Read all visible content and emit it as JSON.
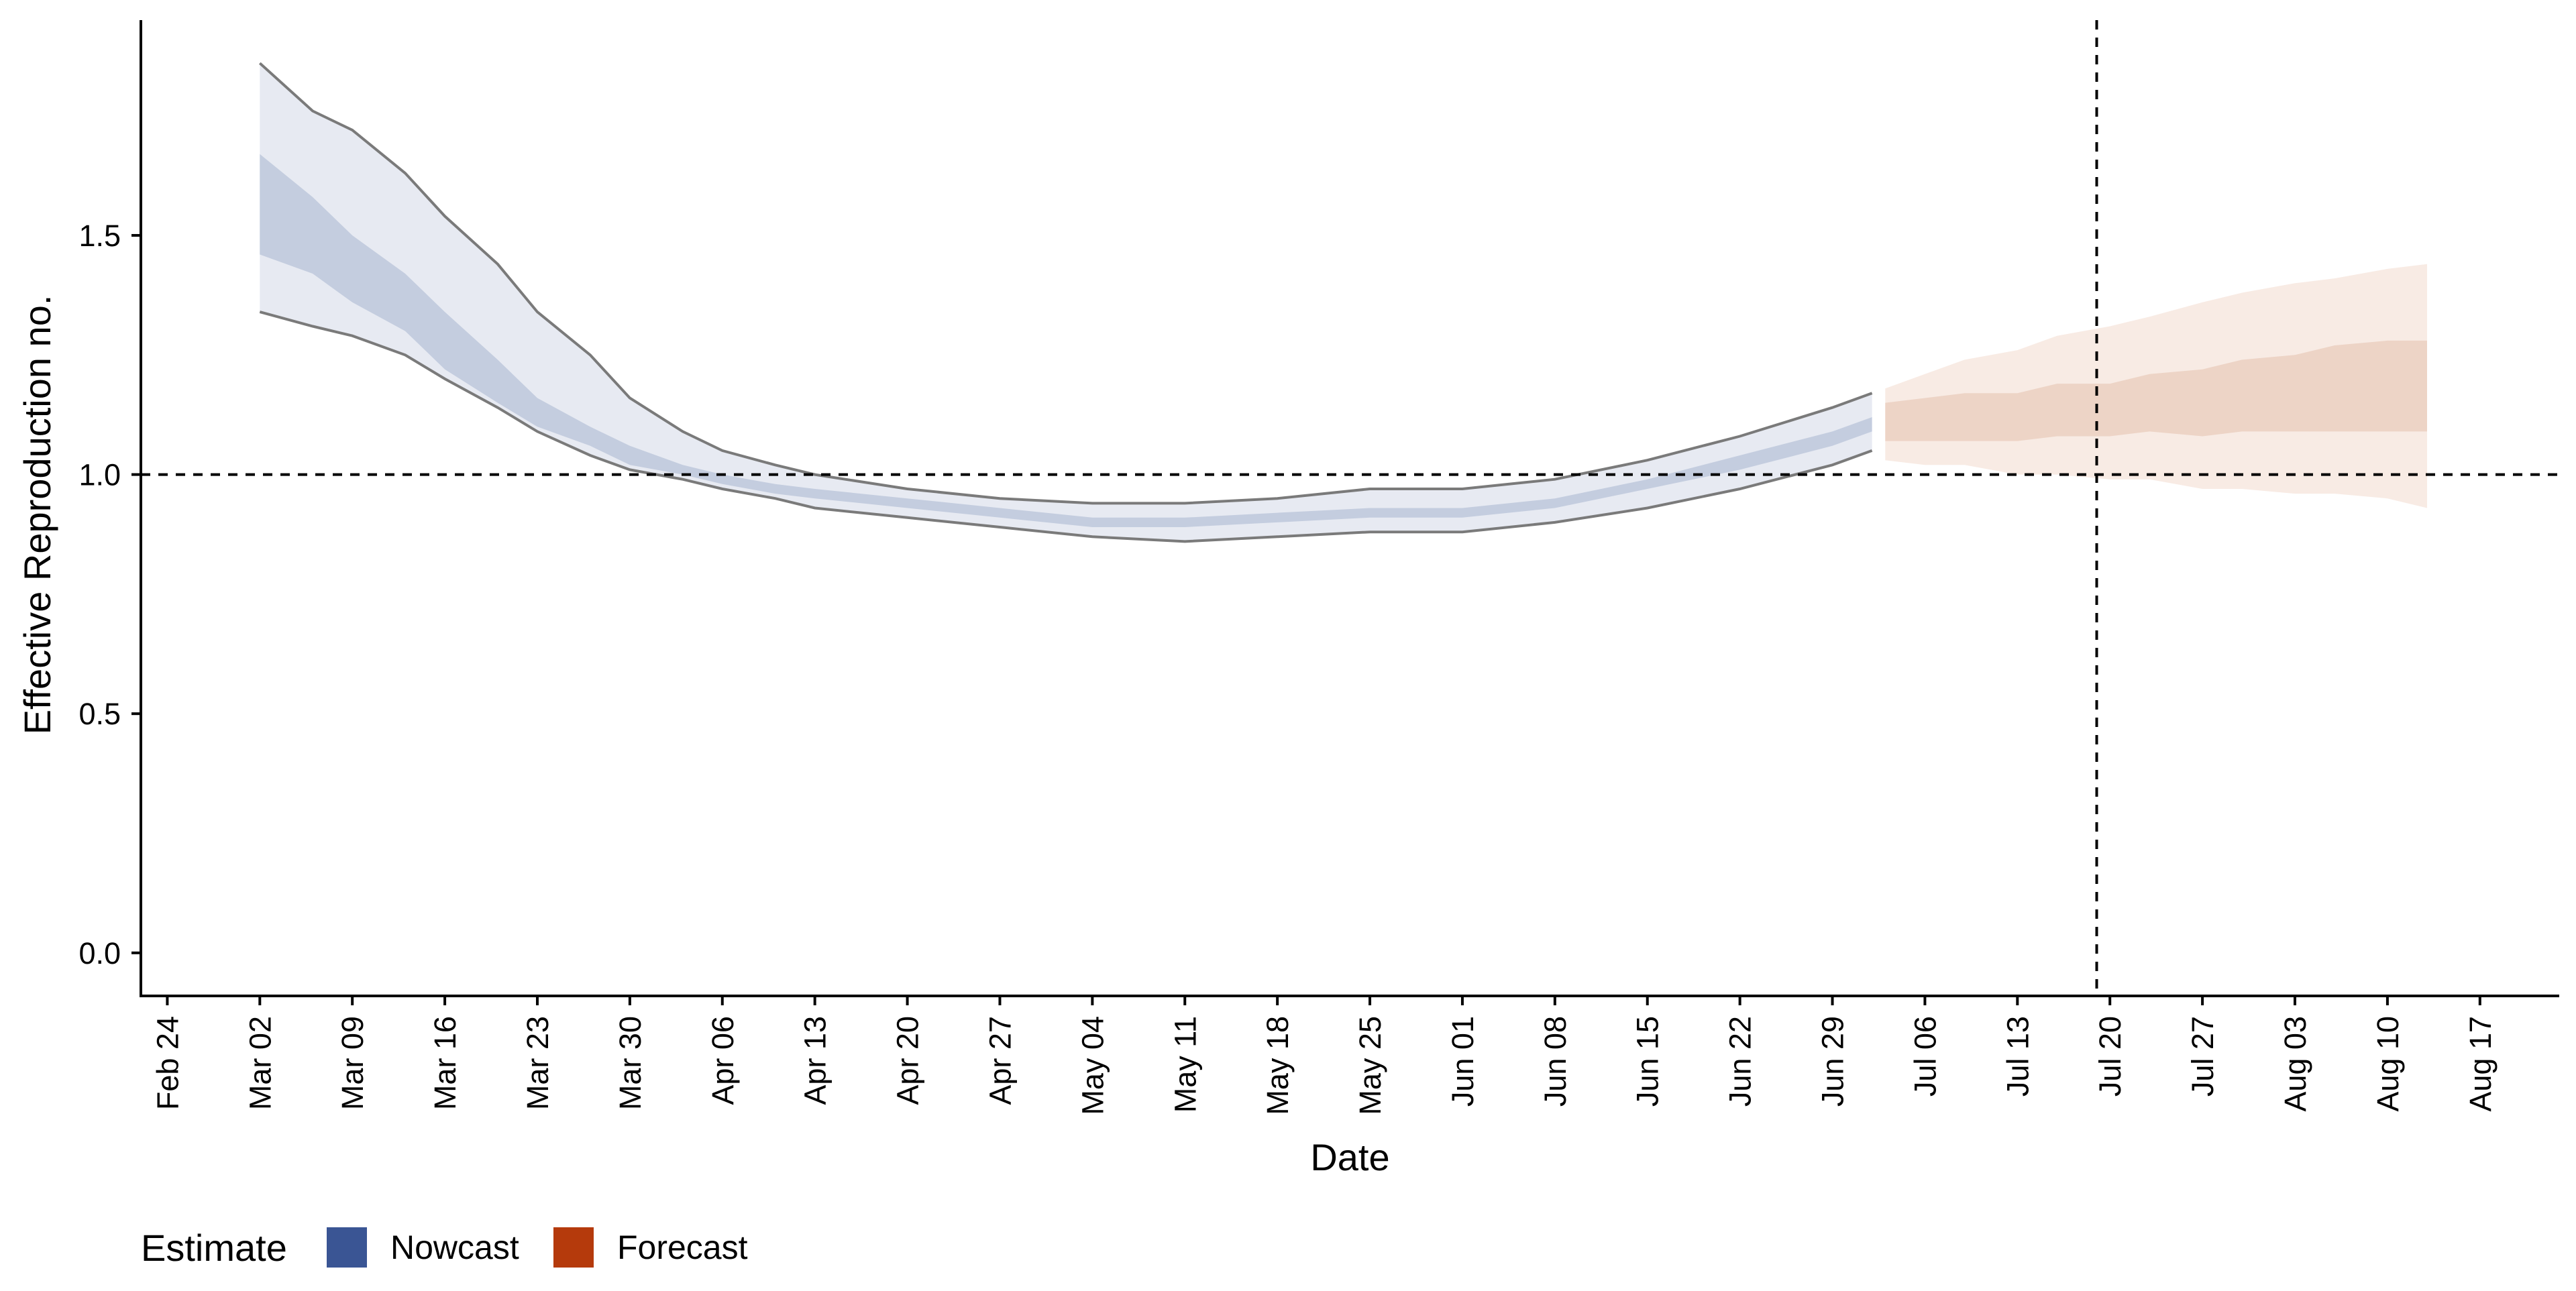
{
  "chart_data": {
    "type": "area",
    "title": "",
    "xlabel": "Date",
    "ylabel": "Effective Reproduction no.",
    "x_ticks": [
      "Feb 24",
      "Mar 02",
      "Mar 09",
      "Mar 16",
      "Mar 23",
      "Mar 30",
      "Apr 06",
      "Apr 13",
      "Apr 20",
      "Apr 27",
      "May 04",
      "May 11",
      "May 18",
      "May 25",
      "Jun 01",
      "Jun 08",
      "Jun 15",
      "Jun 22",
      "Jun 29",
      "Jul 06",
      "Jul 13",
      "Jul 20",
      "Jul 27",
      "Aug 03",
      "Aug 10",
      "Aug 17"
    ],
    "y_ticks": [
      "0.0",
      "0.5",
      "1.0",
      "1.5"
    ],
    "ylim": [
      -0.09,
      1.95
    ],
    "xlim": [
      "2020-02-22",
      "2020-08-23"
    ],
    "grid": false,
    "reference_lines": {
      "horizontal_y": 1.0,
      "vertical_x": "2020-07-19"
    },
    "legend": {
      "title": "Estimate",
      "position": "bottom-left",
      "entries": [
        {
          "label": "Nowcast",
          "color": "#3a5594"
        },
        {
          "label": "Forecast",
          "color": "#b53a0c"
        }
      ]
    },
    "colors": {
      "nowcast_outer": "#e7eaf2",
      "nowcast_inner": "#c4cddf",
      "nowcast_bound_line": "#7a7a7a",
      "forecast_outer": "#f8ebe4",
      "forecast_inner": "#edd4c6"
    },
    "series": [
      {
        "name": "Nowcast",
        "x": [
          "2020-03-02",
          "2020-03-06",
          "2020-03-09",
          "2020-03-13",
          "2020-03-16",
          "2020-03-20",
          "2020-03-23",
          "2020-03-27",
          "2020-03-30",
          "2020-04-03",
          "2020-04-06",
          "2020-04-10",
          "2020-04-13",
          "2020-04-20",
          "2020-04-27",
          "2020-05-04",
          "2020-05-11",
          "2020-05-18",
          "2020-05-25",
          "2020-06-01",
          "2020-06-08",
          "2020-06-15",
          "2020-06-22",
          "2020-06-29",
          "2020-07-02"
        ],
        "upper_90": [
          1.86,
          1.76,
          1.72,
          1.63,
          1.54,
          1.44,
          1.34,
          1.25,
          1.16,
          1.09,
          1.05,
          1.02,
          1.0,
          0.97,
          0.95,
          0.94,
          0.94,
          0.95,
          0.97,
          0.97,
          0.99,
          1.03,
          1.08,
          1.14,
          1.17
        ],
        "upper_50": [
          1.67,
          1.58,
          1.5,
          1.42,
          1.34,
          1.24,
          1.16,
          1.1,
          1.06,
          1.02,
          1.0,
          0.98,
          0.97,
          0.95,
          0.93,
          0.91,
          0.91,
          0.92,
          0.93,
          0.93,
          0.95,
          0.99,
          1.04,
          1.09,
          1.12
        ],
        "lower_50": [
          1.46,
          1.42,
          1.36,
          1.3,
          1.22,
          1.15,
          1.1,
          1.06,
          1.02,
          1.0,
          0.98,
          0.96,
          0.95,
          0.93,
          0.91,
          0.89,
          0.89,
          0.9,
          0.91,
          0.91,
          0.93,
          0.97,
          1.01,
          1.06,
          1.09
        ],
        "lower_90": [
          1.34,
          1.31,
          1.29,
          1.25,
          1.2,
          1.14,
          1.09,
          1.04,
          1.01,
          0.99,
          0.97,
          0.95,
          0.93,
          0.91,
          0.89,
          0.87,
          0.86,
          0.87,
          0.88,
          0.88,
          0.9,
          0.93,
          0.97,
          1.02,
          1.05
        ]
      },
      {
        "name": "Forecast",
        "x": [
          "2020-07-03",
          "2020-07-06",
          "2020-07-09",
          "2020-07-13",
          "2020-07-16",
          "2020-07-20",
          "2020-07-23",
          "2020-07-27",
          "2020-07-30",
          "2020-08-03",
          "2020-08-06",
          "2020-08-10",
          "2020-08-13"
        ],
        "upper_90": [
          1.18,
          1.21,
          1.24,
          1.26,
          1.29,
          1.31,
          1.33,
          1.36,
          1.38,
          1.4,
          1.41,
          1.43,
          1.44
        ],
        "upper_50": [
          1.15,
          1.16,
          1.17,
          1.17,
          1.19,
          1.19,
          1.21,
          1.22,
          1.24,
          1.25,
          1.27,
          1.28,
          1.28
        ],
        "lower_50": [
          1.07,
          1.07,
          1.07,
          1.07,
          1.08,
          1.08,
          1.09,
          1.08,
          1.09,
          1.09,
          1.09,
          1.09,
          1.09
        ],
        "lower_90": [
          1.03,
          1.02,
          1.02,
          1.0,
          1.0,
          0.99,
          0.99,
          0.97,
          0.97,
          0.96,
          0.96,
          0.95,
          0.93
        ]
      }
    ]
  }
}
